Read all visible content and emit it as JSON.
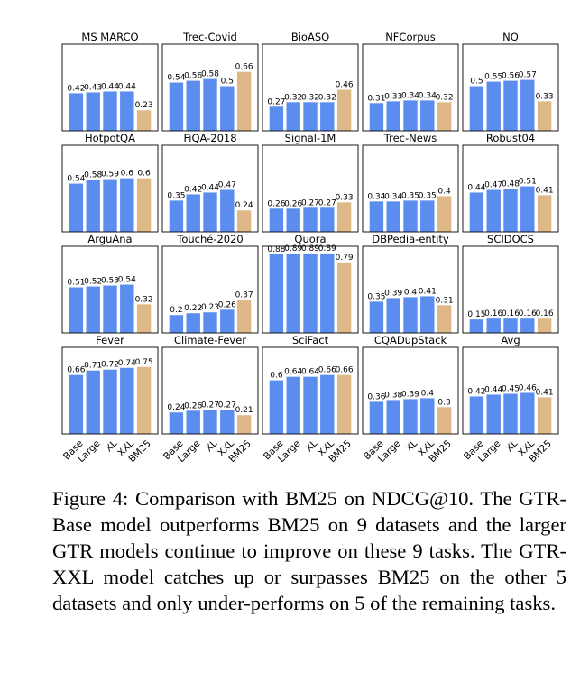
{
  "chart_data": {
    "type": "bar",
    "layout": "5x4 small multiples",
    "categories": [
      "Base",
      "Large",
      "XL",
      "XXL",
      "BM25"
    ],
    "colors": {
      "gtr": "#5b8def",
      "bm25": "#deb887"
    },
    "panels": [
      {
        "title": "MS MARCO",
        "values": [
          0.42,
          0.43,
          0.44,
          0.44,
          0.23
        ],
        "labels": [
          "0.42",
          "0.43",
          "0.44",
          "0.44",
          "0.23"
        ]
      },
      {
        "title": "Trec-Covid",
        "values": [
          0.54,
          0.56,
          0.58,
          0.5,
          0.66
        ],
        "labels": [
          "0.54",
          "0.56",
          "0.58",
          "0.5",
          "0.66"
        ]
      },
      {
        "title": "BioASQ",
        "values": [
          0.27,
          0.32,
          0.32,
          0.32,
          0.46
        ],
        "labels": [
          "0.27",
          "0.32",
          "0.32",
          "0.32",
          "0.46"
        ]
      },
      {
        "title": "NFCorpus",
        "values": [
          0.31,
          0.33,
          0.34,
          0.34,
          0.32
        ],
        "labels": [
          "0.31",
          "0.33",
          "0.34",
          "0.34",
          "0.32"
        ]
      },
      {
        "title": "NQ",
        "values": [
          0.5,
          0.55,
          0.56,
          0.57,
          0.33
        ],
        "labels": [
          "0.5",
          "0.55",
          "0.56",
          "0.57",
          "0.33"
        ]
      },
      {
        "title": "HotpotQA",
        "values": [
          0.54,
          0.58,
          0.59,
          0.6,
          0.6
        ],
        "labels": [
          "0.54",
          "0.58",
          "0.59",
          "0.6",
          "0.6"
        ]
      },
      {
        "title": "FiQA-2018",
        "values": [
          0.35,
          0.42,
          0.44,
          0.47,
          0.24
        ],
        "labels": [
          "0.35",
          "0.42",
          "0.44",
          "0.47",
          "0.24"
        ]
      },
      {
        "title": "Signal-1M",
        "values": [
          0.26,
          0.26,
          0.27,
          0.27,
          0.33
        ],
        "labels": [
          "0.26",
          "0.26",
          "0.27",
          "0.27",
          "0.33"
        ]
      },
      {
        "title": "Trec-News",
        "values": [
          0.34,
          0.34,
          0.35,
          0.35,
          0.4
        ],
        "labels": [
          "0.34",
          "0.34",
          "0.35",
          "0.35",
          "0.4"
        ]
      },
      {
        "title": "Robust04",
        "values": [
          0.44,
          0.47,
          0.48,
          0.51,
          0.41
        ],
        "labels": [
          "0.44",
          "0.47",
          "0.48",
          "0.51",
          "0.41"
        ]
      },
      {
        "title": "ArguAna",
        "values": [
          0.51,
          0.52,
          0.53,
          0.54,
          0.32
        ],
        "labels": [
          "0.51",
          "0.52",
          "0.53",
          "0.54",
          "0.32"
        ]
      },
      {
        "title": "Touché-2020",
        "values": [
          0.2,
          0.22,
          0.23,
          0.26,
          0.37
        ],
        "labels": [
          "0.2",
          "0.22",
          "0.23",
          "0.26",
          "0.37"
        ]
      },
      {
        "title": "Quora",
        "values": [
          0.88,
          0.89,
          0.89,
          0.89,
          0.79
        ],
        "labels": [
          "0.88",
          "0.89",
          "0.89",
          "0.89",
          "0.79"
        ]
      },
      {
        "title": "DBPedia-entity",
        "values": [
          0.35,
          0.39,
          0.4,
          0.41,
          0.31
        ],
        "labels": [
          "0.35",
          "0.39",
          "0.4",
          "0.41",
          "0.31"
        ]
      },
      {
        "title": "SCIDOCS",
        "values": [
          0.15,
          0.16,
          0.16,
          0.16,
          0.16
        ],
        "labels": [
          "0.15",
          "0.16",
          "0.16",
          "0.16",
          "0.16"
        ]
      },
      {
        "title": "Fever",
        "values": [
          0.66,
          0.71,
          0.72,
          0.74,
          0.75
        ],
        "labels": [
          "0.66",
          "0.71",
          "0.72",
          "0.74",
          "0.75"
        ]
      },
      {
        "title": "Climate-Fever",
        "values": [
          0.24,
          0.26,
          0.27,
          0.27,
          0.21
        ],
        "labels": [
          "0.24",
          "0.26",
          "0.27",
          "0.27",
          "0.21"
        ]
      },
      {
        "title": "SciFact",
        "values": [
          0.6,
          0.64,
          0.64,
          0.66,
          0.66
        ],
        "labels": [
          "0.6",
          "0.64",
          "0.64",
          "0.66",
          "0.66"
        ]
      },
      {
        "title": "CQADupStack",
        "values": [
          0.36,
          0.38,
          0.39,
          0.4,
          0.3
        ],
        "labels": [
          "0.36",
          "0.38",
          "0.39",
          "0.4",
          "0.3"
        ]
      },
      {
        "title": "Avg",
        "values": [
          0.42,
          0.44,
          0.45,
          0.46,
          0.41
        ],
        "labels": [
          "0.42",
          "0.44",
          "0.45",
          "0.46",
          "0.41"
        ]
      }
    ]
  },
  "caption": "Figure 4: Comparison with BM25 on NDCG@10. The GTR-Base model outperforms BM25 on 9 datasets and the larger GTR models continue to improve on these 9 tasks. The GTR-XXL model catches up or surpasses BM25 on the other 5 datasets and only under-performs on 5 of the remaining tasks."
}
